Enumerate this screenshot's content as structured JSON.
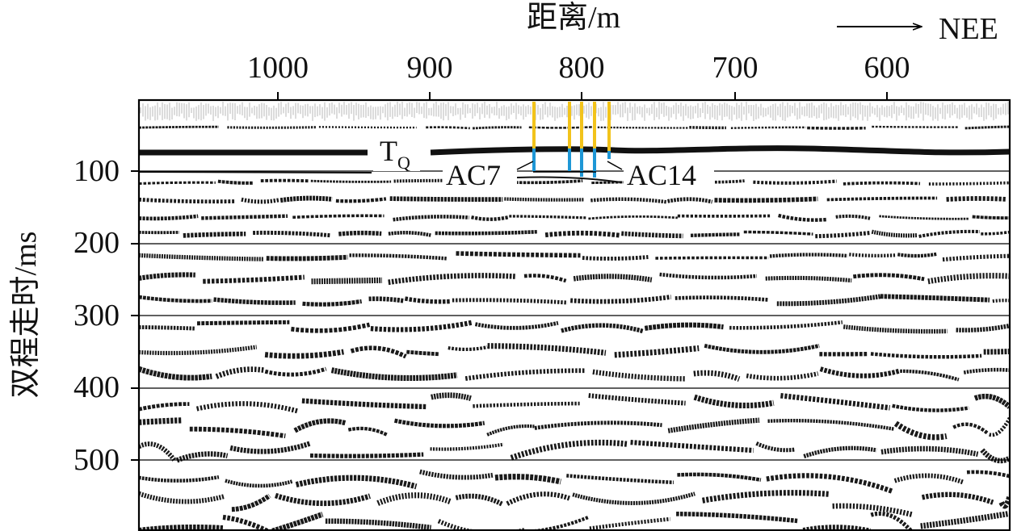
{
  "figure": {
    "x_title": "距离/m",
    "y_title": "双程走时/ms",
    "direction_label": "NEE",
    "x_ticks": [
      "1000",
      "900",
      "800",
      "700",
      "600"
    ],
    "y_ticks": [
      "100",
      "200",
      "300",
      "400",
      "500"
    ],
    "horizon_label_main": "T",
    "horizon_label_sub": "Q",
    "core_label_left": "AC7",
    "core_label_right": "AC14",
    "colors": {
      "trace": "#1a1a1a",
      "core_upper": "#f2c31b",
      "core_lower": "#1e97d6",
      "axis": "#000000"
    }
  }
}
